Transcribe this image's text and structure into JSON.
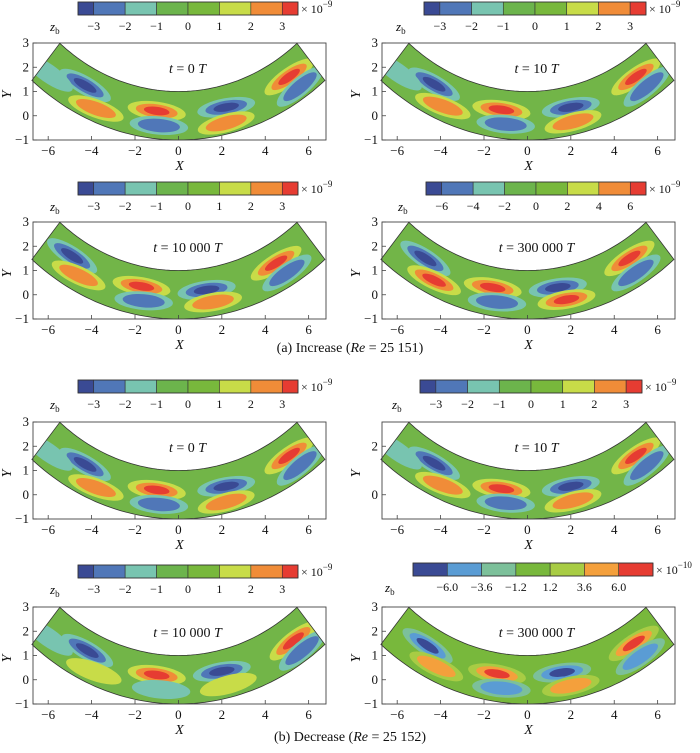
{
  "colors": {
    "darkblue": "#3a4a94",
    "blue": "#5077b8",
    "cyan": "#78c4b0",
    "green1": "#6cb44c",
    "green2": "#78b83c",
    "yellow": "#c8dc48",
    "orange": "#f08c38",
    "red": "#e63c32",
    "channel": "#72b548",
    "blue_b": "#5a9cd4",
    "cyan_b": "#7cc09a",
    "yellow_b": "#a8cc44",
    "orange_b": "#f4a03c"
  },
  "captions": {
    "a": "(a) Increase (Re = 25 151)",
    "a_prefix": "(a) Increase (",
    "a_re": "Re",
    "a_suffix": " = 25 151)",
    "b_prefix": "(b) Decrease (",
    "b_re": "Re",
    "b_suffix": " = 25 152)"
  },
  "chart_data": [
    {
      "type": "heatmap",
      "group": "a",
      "title": "t = 0 T",
      "xlabel": "X",
      "ylabel": "Y",
      "xlim": [
        -6.7,
        6.8
      ],
      "ylim": [
        -1,
        3
      ],
      "xticks": [
        "-6",
        "-4",
        "-2",
        "0",
        "2",
        "4",
        "6"
      ],
      "yticks": [
        "-1",
        "0",
        "1",
        "2",
        "3"
      ],
      "colorbar": {
        "label": "z_b",
        "ticks": [
          "-3",
          "-2",
          "-1",
          "0",
          "1",
          "2",
          "3"
        ],
        "exponent": "-9",
        "levels": [
          -3.5,
          -3,
          -2,
          -1,
          0,
          1,
          2,
          3,
          3.5
        ]
      },
      "vortices": [
        {
          "x": -4.3,
          "y": 1.25,
          "sign": -1,
          "strength": 3,
          "angle": -30
        },
        {
          "x": -3.8,
          "y": 0.3,
          "sign": 1,
          "strength": 2,
          "angle": -20
        },
        {
          "x": -1.0,
          "y": 0.2,
          "sign": 1,
          "strength": 3,
          "angle": -8
        },
        {
          "x": -0.9,
          "y": -0.4,
          "sign": -1,
          "strength": 2,
          "angle": -5
        },
        {
          "x": 2.2,
          "y": 0.35,
          "sign": -1,
          "strength": 3,
          "angle": 10
        },
        {
          "x": 2.2,
          "y": -0.3,
          "sign": 1,
          "strength": 2,
          "angle": 15
        },
        {
          "x": 5.1,
          "y": 1.6,
          "sign": 1,
          "strength": 3,
          "angle": 35
        },
        {
          "x": 5.6,
          "y": 1.2,
          "sign": -1,
          "strength": 2,
          "angle": 40
        },
        {
          "x": -6.0,
          "y": 1.75,
          "sign": -1,
          "strength": 1,
          "angle": -35
        }
      ]
    },
    {
      "type": "heatmap",
      "group": "a",
      "title": "t = 10 T",
      "xlabel": "X",
      "ylabel": "Y",
      "xlim": [
        -6.7,
        6.8
      ],
      "ylim": [
        -1,
        3
      ],
      "xticks": [
        "-6",
        "-4",
        "-2",
        "0",
        "2",
        "4",
        "6"
      ],
      "yticks": [
        "-1",
        "0",
        "1",
        "2",
        "3"
      ],
      "colorbar": {
        "label": "z_b",
        "ticks": [
          "-3",
          "-2",
          "-1",
          "0",
          "1",
          "2",
          "3"
        ],
        "exponent": "-9",
        "levels": [
          -3.5,
          -3,
          -2,
          -1,
          0,
          1,
          2,
          3,
          3.5
        ]
      },
      "vortices": [
        {
          "x": -4.3,
          "y": 1.3,
          "sign": -1,
          "strength": 3,
          "angle": -30
        },
        {
          "x": -3.9,
          "y": 0.4,
          "sign": 1,
          "strength": 2,
          "angle": -20
        },
        {
          "x": -1.2,
          "y": 0.25,
          "sign": 1,
          "strength": 3,
          "angle": -8
        },
        {
          "x": -1.0,
          "y": -0.35,
          "sign": -1,
          "strength": 2,
          "angle": -5
        },
        {
          "x": 2.0,
          "y": 0.35,
          "sign": -1,
          "strength": 3,
          "angle": 10
        },
        {
          "x": 2.1,
          "y": -0.25,
          "sign": 1,
          "strength": 2,
          "angle": 15
        },
        {
          "x": 5.0,
          "y": 1.6,
          "sign": 1,
          "strength": 3,
          "angle": 35
        },
        {
          "x": 5.5,
          "y": 1.2,
          "sign": -1,
          "strength": 2,
          "angle": 40
        },
        {
          "x": -6.0,
          "y": 1.8,
          "sign": -1,
          "strength": 1,
          "angle": -35
        }
      ]
    },
    {
      "type": "heatmap",
      "group": "a",
      "title": "t = 10 000 T",
      "xlabel": "X",
      "ylabel": "Y",
      "xlim": [
        -6.7,
        6.8
      ],
      "ylim": [
        -1,
        3
      ],
      "xticks": [
        "-6",
        "-4",
        "-2",
        "0",
        "2",
        "4",
        "6"
      ],
      "yticks": [
        "-1",
        "0",
        "1",
        "2",
        "3"
      ],
      "colorbar": {
        "label": "z_b",
        "ticks": [
          "-3",
          "-2",
          "-1",
          "0",
          "1",
          "2",
          "3"
        ],
        "exponent": "-9",
        "levels": [
          -3.5,
          -3,
          -2,
          -1,
          0,
          1,
          2,
          3,
          3.5
        ]
      },
      "vortices": [
        {
          "x": -4.9,
          "y": 1.6,
          "sign": -1,
          "strength": 3,
          "angle": -33
        },
        {
          "x": -4.6,
          "y": 0.8,
          "sign": 1,
          "strength": 2,
          "angle": -25
        },
        {
          "x": -1.7,
          "y": 0.35,
          "sign": 1,
          "strength": 3,
          "angle": -10
        },
        {
          "x": -1.6,
          "y": -0.25,
          "sign": -1,
          "strength": 2,
          "angle": -5
        },
        {
          "x": 1.3,
          "y": 0.2,
          "sign": -1,
          "strength": 3,
          "angle": 8
        },
        {
          "x": 1.6,
          "y": -0.3,
          "sign": 1,
          "strength": 2,
          "angle": 10
        },
        {
          "x": 4.5,
          "y": 1.3,
          "sign": 1,
          "strength": 3,
          "angle": 32
        },
        {
          "x": 5.0,
          "y": 0.9,
          "sign": -1,
          "strength": 2,
          "angle": 35
        }
      ]
    },
    {
      "type": "heatmap",
      "group": "a",
      "title": "t = 300 000 T",
      "xlabel": "X",
      "ylabel": "Y",
      "xlim": [
        -6.7,
        6.8
      ],
      "ylim": [
        -1,
        3
      ],
      "xticks": [
        "-6",
        "-4",
        "-2",
        "0",
        "2",
        "4",
        "6"
      ],
      "yticks": [
        "-1",
        "0",
        "1",
        "2",
        "3"
      ],
      "colorbar": {
        "label": "z_b",
        "ticks": [
          "-6",
          "-4",
          "-2",
          "0",
          "2",
          "4",
          "6"
        ],
        "exponent": "-9",
        "levels": [
          -7,
          -6,
          -4,
          -2,
          0,
          2,
          4,
          6,
          7
        ]
      },
      "vortices": [
        {
          "x": -4.7,
          "y": 1.5,
          "sign": -1,
          "strength": 3,
          "angle": -33
        },
        {
          "x": -4.3,
          "y": 0.6,
          "sign": 1,
          "strength": 3,
          "angle": -25
        },
        {
          "x": -1.6,
          "y": 0.3,
          "sign": 1,
          "strength": 3,
          "angle": -10
        },
        {
          "x": -1.4,
          "y": -0.3,
          "sign": -1,
          "strength": 2,
          "angle": -5
        },
        {
          "x": 1.4,
          "y": 0.3,
          "sign": -1,
          "strength": 3,
          "angle": 8
        },
        {
          "x": 1.8,
          "y": -0.2,
          "sign": 1,
          "strength": 3,
          "angle": 10
        },
        {
          "x": 4.7,
          "y": 1.5,
          "sign": 1,
          "strength": 3,
          "angle": 33
        },
        {
          "x": 5.0,
          "y": 0.9,
          "sign": -1,
          "strength": 2,
          "angle": 35
        }
      ]
    },
    {
      "type": "heatmap",
      "group": "b",
      "title": "t = 0 T",
      "xlabel": "X",
      "ylabel": "Y",
      "xlim": [
        -6.7,
        6.8
      ],
      "ylim": [
        -1,
        3
      ],
      "xticks": [
        "-6",
        "-4",
        "-2",
        "0",
        "2",
        "4",
        "6"
      ],
      "yticks": [
        "-1",
        "0",
        "1",
        "2",
        "3"
      ],
      "colorbar": {
        "label": "z_b",
        "ticks": [
          "-3",
          "-2",
          "-1",
          "0",
          "1",
          "2",
          "3"
        ],
        "exponent": "-9",
        "levels": [
          -3.5,
          -3,
          -2,
          -1,
          0,
          1,
          2,
          3,
          3.5
        ]
      },
      "vortices": [
        {
          "x": -4.3,
          "y": 1.25,
          "sign": -1,
          "strength": 3,
          "angle": -30
        },
        {
          "x": -3.8,
          "y": 0.3,
          "sign": 1,
          "strength": 2,
          "angle": -20
        },
        {
          "x": -1.0,
          "y": 0.2,
          "sign": 1,
          "strength": 3,
          "angle": -8
        },
        {
          "x": -0.9,
          "y": -0.4,
          "sign": -1,
          "strength": 2,
          "angle": -5
        },
        {
          "x": 2.2,
          "y": 0.35,
          "sign": -1,
          "strength": 3,
          "angle": 10
        },
        {
          "x": 2.2,
          "y": -0.3,
          "sign": 1,
          "strength": 2,
          "angle": 15
        },
        {
          "x": 5.1,
          "y": 1.6,
          "sign": 1,
          "strength": 3,
          "angle": 35
        },
        {
          "x": 5.6,
          "y": 1.2,
          "sign": -1,
          "strength": 2,
          "angle": 40
        },
        {
          "x": -6.0,
          "y": 1.75,
          "sign": -1,
          "strength": 1,
          "angle": -35
        }
      ]
    },
    {
      "type": "heatmap",
      "group": "b",
      "title": "t = 10 T",
      "xlabel": "X",
      "ylabel": "Y",
      "xlim": [
        -6.7,
        6.8
      ],
      "ylim": [
        -1,
        3
      ],
      "xticks": [
        "-6",
        "-4",
        "-2",
        "0",
        "2",
        "4",
        "6"
      ],
      "yticks": [
        "0",
        "2"
      ],
      "colorbar": {
        "label": "z_b",
        "ticks": [
          "-3",
          "-2",
          "-1",
          "0",
          "1",
          "2",
          "3"
        ],
        "exponent": "-9",
        "levels": [
          -3.5,
          -3,
          -2,
          -1,
          0,
          1,
          2,
          3,
          3.5
        ]
      },
      "vortices": [
        {
          "x": -4.3,
          "y": 1.3,
          "sign": -1,
          "strength": 3,
          "angle": -30
        },
        {
          "x": -3.9,
          "y": 0.4,
          "sign": 1,
          "strength": 2,
          "angle": -20
        },
        {
          "x": -1.2,
          "y": 0.25,
          "sign": 1,
          "strength": 3,
          "angle": -8
        },
        {
          "x": -1.0,
          "y": -0.35,
          "sign": -1,
          "strength": 2,
          "angle": -5
        },
        {
          "x": 2.0,
          "y": 0.35,
          "sign": -1,
          "strength": 3,
          "angle": 10
        },
        {
          "x": 2.1,
          "y": -0.25,
          "sign": 1,
          "strength": 2,
          "angle": 15
        },
        {
          "x": 5.0,
          "y": 1.6,
          "sign": 1,
          "strength": 3,
          "angle": 35
        },
        {
          "x": 5.5,
          "y": 1.2,
          "sign": -1,
          "strength": 2,
          "angle": 40
        },
        {
          "x": -6.0,
          "y": 1.8,
          "sign": -1,
          "strength": 1,
          "angle": -35
        }
      ]
    },
    {
      "type": "heatmap",
      "group": "b",
      "title": "t = 10 000 T",
      "xlabel": "X",
      "ylabel": "Y",
      "xlim": [
        -6.7,
        6.8
      ],
      "ylim": [
        -1,
        3
      ],
      "xticks": [
        "-6",
        "-4",
        "-2",
        "0",
        "2",
        "4",
        "6"
      ],
      "yticks": [
        "-1",
        "0",
        "1",
        "2",
        "3"
      ],
      "colorbar": {
        "label": "z_b",
        "ticks": [
          "-3",
          "-2",
          "-1",
          "0",
          "1",
          "2",
          "3"
        ],
        "exponent": "-9",
        "levels": [
          -3.5,
          -3,
          -2,
          -1,
          0,
          1,
          2,
          3,
          3.5
        ]
      },
      "vortices": [
        {
          "x": -4.2,
          "y": 1.2,
          "sign": -1,
          "strength": 3,
          "angle": -30
        },
        {
          "x": -3.9,
          "y": 0.35,
          "sign": 1,
          "strength": 1,
          "angle": -20
        },
        {
          "x": -1.0,
          "y": 0.2,
          "sign": 1,
          "strength": 3,
          "angle": -8
        },
        {
          "x": -0.8,
          "y": -0.4,
          "sign": -1,
          "strength": 1,
          "angle": -5
        },
        {
          "x": 2.0,
          "y": 0.35,
          "sign": -1,
          "strength": 3,
          "angle": 10
        },
        {
          "x": 2.3,
          "y": -0.2,
          "sign": 1,
          "strength": 1,
          "angle": 15
        },
        {
          "x": 5.3,
          "y": 1.6,
          "sign": 1,
          "strength": 3,
          "angle": 38
        },
        {
          "x": 5.7,
          "y": 1.2,
          "sign": -1,
          "strength": 2,
          "angle": 40
        },
        {
          "x": -6.0,
          "y": 1.75,
          "sign": -1,
          "strength": 1,
          "angle": -35
        }
      ]
    },
    {
      "type": "heatmap",
      "group": "b",
      "title": "t = 300 000 T",
      "xlabel": "X",
      "ylabel": "Y",
      "xlim": [
        -6.7,
        6.8
      ],
      "ylim": [
        -1,
        3
      ],
      "xticks": [
        "-6",
        "-4",
        "-2",
        "0",
        "2",
        "4",
        "6"
      ],
      "yticks": [
        "-1",
        "0",
        "1",
        "2",
        "3"
      ],
      "colorbar": {
        "label": "z_b",
        "ticks": [
          "-6.0",
          "-3.6",
          "-1.2",
          "1.2",
          "3.6",
          "6.0"
        ],
        "exponent": "-10",
        "levels": [
          -8.4,
          -6.0,
          -3.6,
          -1.2,
          1.2,
          3.6,
          6.0,
          8.4
        ],
        "palette": "b"
      },
      "vortices": [
        {
          "x": -4.6,
          "y": 1.4,
          "sign": -1,
          "strength": 3,
          "angle": -33
        },
        {
          "x": -4.2,
          "y": 0.55,
          "sign": 1,
          "strength": 2,
          "angle": -25
        },
        {
          "x": -1.4,
          "y": 0.25,
          "sign": 1,
          "strength": 3,
          "angle": -10
        },
        {
          "x": -1.2,
          "y": -0.35,
          "sign": -1,
          "strength": 2,
          "angle": -5
        },
        {
          "x": 1.6,
          "y": 0.3,
          "sign": -1,
          "strength": 3,
          "angle": 8
        },
        {
          "x": 2.0,
          "y": -0.25,
          "sign": 1,
          "strength": 2,
          "angle": 12
        },
        {
          "x": 4.9,
          "y": 1.5,
          "sign": 1,
          "strength": 3,
          "angle": 33
        },
        {
          "x": 5.2,
          "y": 0.95,
          "sign": -1,
          "strength": 2,
          "angle": 35
        }
      ]
    }
  ]
}
